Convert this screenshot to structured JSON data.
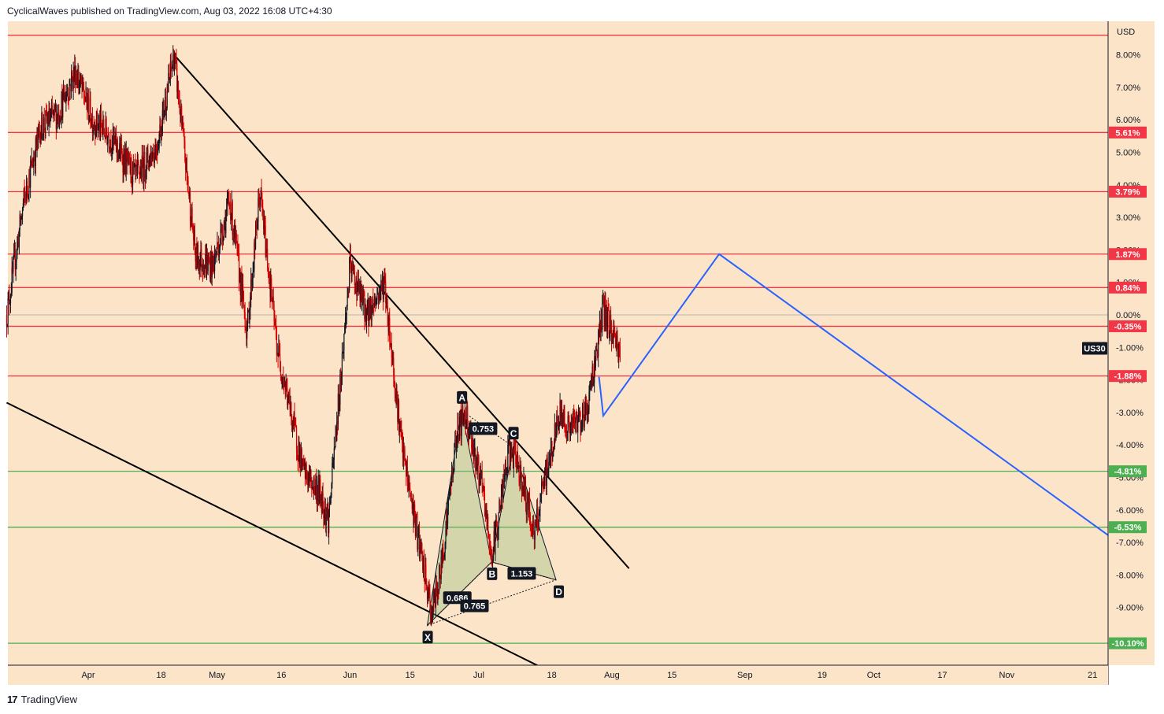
{
  "header": {
    "publisher_text": "CyclicalWaves published on TradingView.com, Aug 03, 2022 16:08 UTC+4:30"
  },
  "footer": {
    "logo_mark": "17",
    "brand": "TradingView"
  },
  "chart_data": {
    "type": "candlestick",
    "symbol": "US30",
    "currency": "USD",
    "y_unit": "%",
    "ylim": [
      -10.5,
      8.6
    ],
    "y_ticks": [
      "8.00%",
      "7.00%",
      "6.00%",
      "5.00%",
      "4.00%",
      "3.00%",
      "2.00%",
      "1.00%",
      "0.00%",
      "-1.00%",
      "-2.00%",
      "-3.00%",
      "-4.00%",
      "-5.00%",
      "-6.00%",
      "-7.00%",
      "-8.00%",
      "-9.00%"
    ],
    "x_ticks": [
      "Apr",
      "18",
      "May",
      "16",
      "Jun",
      "15",
      "Jul",
      "18",
      "Aug",
      "15",
      "Sep",
      "19",
      "Oct",
      "17",
      "Nov",
      "21"
    ],
    "horizontal_levels": [
      {
        "value": 8.6,
        "color": "#f23645",
        "label": ""
      },
      {
        "value": 5.61,
        "color": "#f23645",
        "label": "5.61%"
      },
      {
        "value": 3.79,
        "color": "#f23645",
        "label": "3.79%"
      },
      {
        "value": 1.87,
        "color": "#f23645",
        "label": "1.87%"
      },
      {
        "value": 0.84,
        "color": "#f23645",
        "label": "0.84%"
      },
      {
        "value": -0.35,
        "color": "#f23645",
        "label": "-0.35%"
      },
      {
        "value": -1.88,
        "color": "#f23645",
        "label": "-1.88%"
      },
      {
        "value": -4.81,
        "color": "#4caf50",
        "label": "-4.81%"
      },
      {
        "value": -6.53,
        "color": "#4caf50",
        "label": "-6.53%"
      },
      {
        "value": -10.1,
        "color": "#4caf50",
        "label": "-10.10%"
      }
    ],
    "last_price_label": "US30",
    "last_price_value": -1.03,
    "price_path": [
      [
        "Mar 13",
        0.0
      ],
      [
        "Mar 17",
        3.5
      ],
      [
        "Mar 21",
        5.8
      ],
      [
        "Mar 25",
        6.2
      ],
      [
        "Mar 29",
        7.5
      ],
      [
        "Apr 2",
        6.0
      ],
      [
        "Apr 6",
        5.5
      ],
      [
        "Apr 12",
        4.2
      ],
      [
        "Apr 17",
        5.2
      ],
      [
        "Apr 21",
        8.0
      ],
      [
        "Apr 26",
        1.8
      ],
      [
        "Apr 30",
        1.5
      ],
      [
        "May 4",
        3.5
      ],
      [
        "May 8",
        -0.5
      ],
      [
        "May 11",
        3.8
      ],
      [
        "May 15",
        -1.0
      ],
      [
        "May 19",
        -3.5
      ],
      [
        "May 21",
        -4.8
      ],
      [
        "May 25",
        -5.5
      ],
      [
        "May 27",
        -6.3
      ],
      [
        "Jun 1",
        1.5
      ],
      [
        "Jun 5",
        0.0
      ],
      [
        "Jun 9",
        1.0
      ],
      [
        "Jun 13",
        -4.0
      ],
      [
        "Jun 17",
        -7.0
      ],
      [
        "Jun 20",
        -9.2
      ],
      [
        "Jun 22",
        -8.0
      ],
      [
        "Jun 26",
        -3.5
      ],
      [
        "Jun 28",
        -3.0
      ],
      [
        "Jul 2",
        -5.5
      ],
      [
        "Jul 4",
        -7.5
      ],
      [
        "Jul 8",
        -4.2
      ],
      [
        "Jul 10",
        -4.5
      ],
      [
        "Jul 14",
        -6.8
      ],
      [
        "Jul 16",
        -5.3
      ],
      [
        "Jul 20",
        -3.0
      ],
      [
        "Jul 22",
        -3.5
      ],
      [
        "Jul 26",
        -3.0
      ],
      [
        "Jul 28",
        -1.5
      ],
      [
        "Jul 30",
        0.2
      ],
      [
        "Aug 1",
        -0.5
      ],
      [
        "Aug 3",
        -1.1
      ]
    ],
    "trendlines": [
      {
        "from": [
          "Apr 21",
          8.0
        ],
        "to": [
          "Aug 5",
          -7.8
        ],
        "color": "#000000"
      },
      {
        "from": [
          "Mar 13",
          -2.7
        ],
        "to": [
          "Jul 18",
          -11.0
        ],
        "color": "#000000"
      }
    ],
    "projection": {
      "color": "#2962ff",
      "points": [
        [
          "Jul 29",
          -1.9
        ],
        [
          "Jul 30",
          -3.1
        ],
        [
          "Aug 26",
          1.87
        ],
        [
          "Nov 28",
          -7.1
        ]
      ]
    },
    "harmonic_pattern": {
      "points": [
        {
          "name": "X",
          "date": "Jun 19",
          "value": -9.55
        },
        {
          "name": "A",
          "date": "Jun 27",
          "value": -2.95
        },
        {
          "name": "B",
          "date": "Jul 4",
          "value": -7.6
        },
        {
          "name": "C",
          "date": "Jul 9",
          "value": -4.05
        },
        {
          "name": "D",
          "date": "Jul 19",
          "value": -8.15
        }
      ],
      "ratios": [
        {
          "label": "0.753",
          "date": "Jul 2",
          "value": -3.5
        },
        {
          "label": "1.153",
          "date": "Jul 11",
          "value": -7.95
        },
        {
          "label": "0.686",
          "date": "Jun 26",
          "value": -8.7
        },
        {
          "label": "0.765",
          "date": "Jun 30",
          "value": -8.95
        }
      ]
    }
  }
}
